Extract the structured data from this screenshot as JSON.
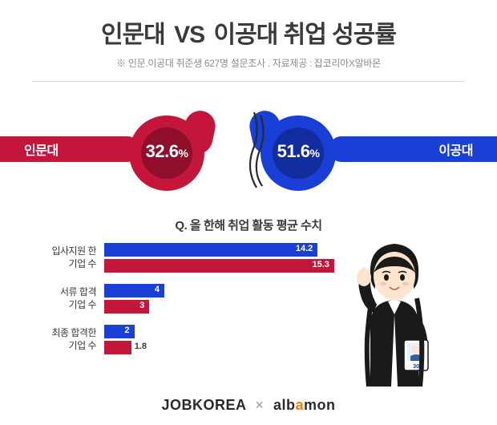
{
  "title_left": "인문대",
  "title_vs": "VS",
  "title_right": "이공대 취업 성공률",
  "subtitle": "※ 인문.이공대 취준생 627명 설문조사 . 자료제공 : 잡코리아X알바몬",
  "colors": {
    "red": "#c4153a",
    "red_dark": "#8f0e2b",
    "blue": "#1a3fd6",
    "blue_dark": "#112d9e",
    "shadow": "rgba(0,0,0,0.15)"
  },
  "vs_left": {
    "label": "인문대",
    "pct": "32.6",
    "pct_sign": "%"
  },
  "vs_right": {
    "label": "이공대",
    "pct": "51.6",
    "pct_sign": "%"
  },
  "chart": {
    "title": "Q. 올 한해 취업 활동 평균 수치",
    "max_value": 16,
    "track_width": 300,
    "groups": [
      {
        "label_line1": "입사지원 한",
        "label_line2": "기업 수",
        "blue": 14.2,
        "red": 15.3
      },
      {
        "label_line1": "서류 합격",
        "label_line2": "기업 수",
        "blue": 4,
        "red": 3
      },
      {
        "label_line1": "최종 합격한",
        "label_line2": "기업 수",
        "blue": 2,
        "red": 1.8
      }
    ]
  },
  "footer": {
    "jobkorea": "JOBKOREA",
    "x": "×",
    "albamon_alb": "alb",
    "albamon_a": "a",
    "albamon_mon": "mon"
  }
}
